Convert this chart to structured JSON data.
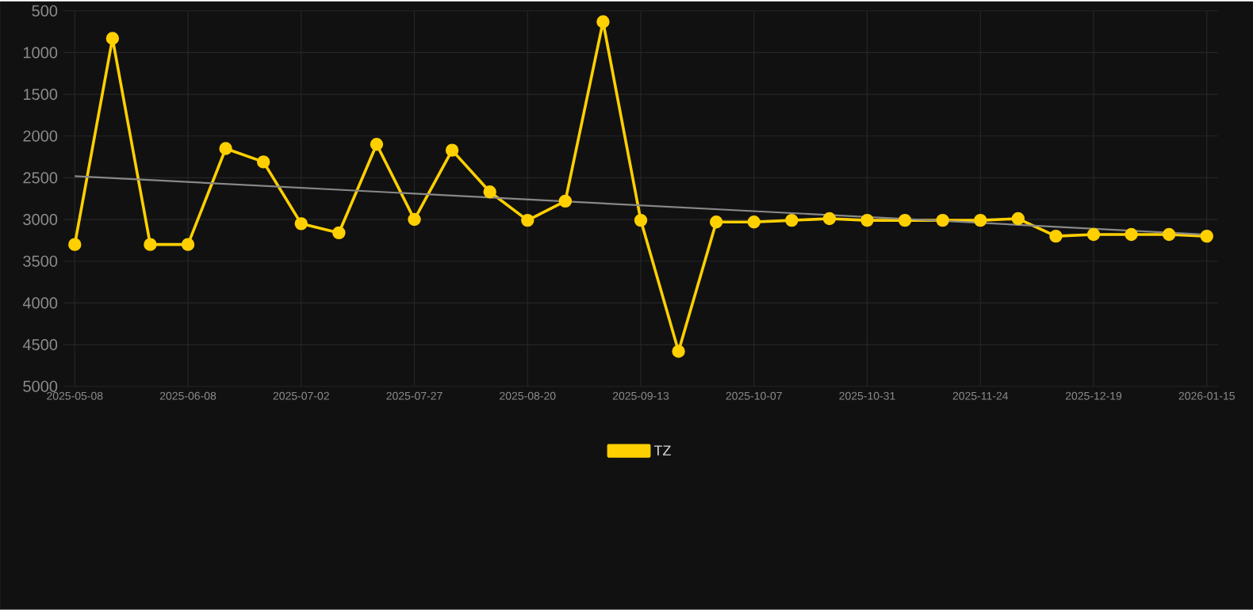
{
  "chart_data": {
    "type": "line",
    "categories": [
      "2025-05-08",
      null,
      null,
      "2025-06-08",
      null,
      null,
      "2025-07-02",
      null,
      null,
      "2025-07-27",
      null,
      null,
      "2025-08-20",
      null,
      null,
      "2025-09-13",
      null,
      null,
      "2025-10-07",
      null,
      null,
      "2025-10-31",
      null,
      null,
      "2025-11-24",
      null,
      null,
      "2025-12-19",
      null,
      null,
      "2026-01-15"
    ],
    "series": [
      {
        "name": "TZ",
        "color": "#ffd000",
        "marker": "circle",
        "values": [
          3300,
          830,
          3300,
          3300,
          2150,
          2310,
          3050,
          3160,
          2100,
          3000,
          2170,
          2670,
          3010,
          2780,
          630,
          3010,
          4580,
          3030,
          3030,
          3010,
          2990,
          3010,
          3010,
          3010,
          3010,
          2990,
          3200,
          3180,
          3180,
          3180,
          3200
        ]
      },
      {
        "color": "#888888",
        "marker": "none",
        "values": [
          2480,
          null,
          null,
          null,
          null,
          null,
          null,
          null,
          null,
          null,
          null,
          null,
          null,
          null,
          null,
          null,
          null,
          null,
          null,
          null,
          null,
          null,
          null,
          null,
          null,
          null,
          null,
          null,
          null,
          null,
          3180
        ]
      }
    ],
    "ylim": [
      5000,
      500
    ],
    "yticks": [
      500,
      1000,
      1500,
      2000,
      2500,
      3000,
      3500,
      4000,
      4500,
      5000
    ],
    "grid": true,
    "legend": "bottom",
    "line_style": "solid"
  }
}
